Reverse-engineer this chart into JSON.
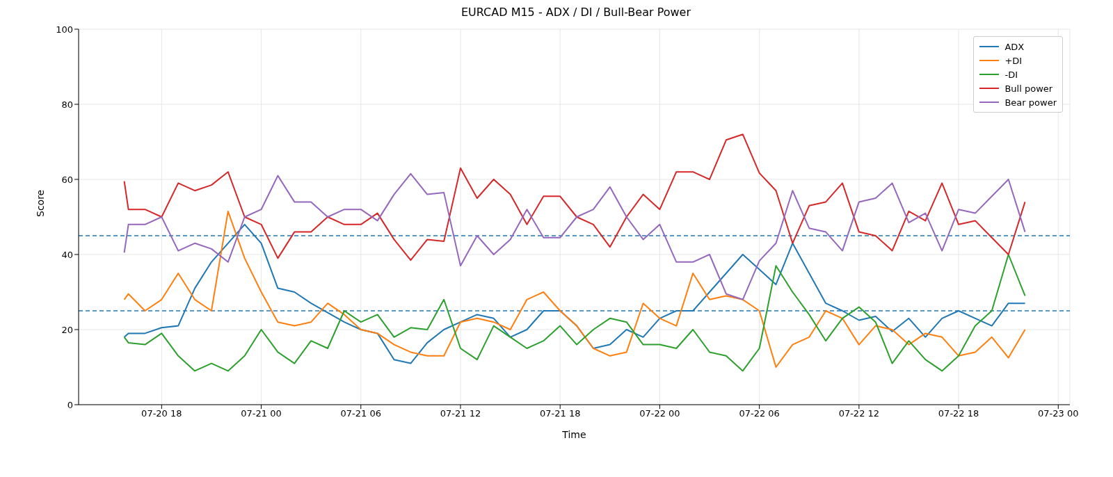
{
  "chart_data": {
    "type": "line",
    "title": "EURCAD M15 - ADX / DI / Bull-Bear Power",
    "xlabel": "Time",
    "ylabel": "Score",
    "x": [
      "--07-20T15:45",
      "--07-20T16:00",
      "--07-20T17:00",
      "--07-20T18:00",
      "--07-20T19:00",
      "--07-20T20:00",
      "--07-20T21:00",
      "--07-20T22:00",
      "--07-20T23:00",
      "--07-21T00:00",
      "--07-21T01:00",
      "--07-21T02:00",
      "--07-21T03:00",
      "--07-21T04:00",
      "--07-21T05:00",
      "--07-21T06:00",
      "--07-21T07:00",
      "--07-21T08:00",
      "--07-21T09:00",
      "--07-21T10:00",
      "--07-21T11:00",
      "--07-21T12:00",
      "--07-21T13:00",
      "--07-21T14:00",
      "--07-21T15:00",
      "--07-21T16:00",
      "--07-21T17:00",
      "--07-21T18:00",
      "--07-21T19:00",
      "--07-21T20:00",
      "--07-21T21:00",
      "--07-21T22:00",
      "--07-21T23:00",
      "--07-22T00:00",
      "--07-22T01:00",
      "--07-22T02:00",
      "--07-22T03:00",
      "--07-22T04:00",
      "--07-22T05:00",
      "--07-22T06:00",
      "--07-22T07:00",
      "--07-22T08:00",
      "--07-22T09:00",
      "--07-22T10:00",
      "--07-22T11:00",
      "--07-22T12:00",
      "--07-22T13:00",
      "--07-22T14:00",
      "--07-22T15:00",
      "--07-22T16:00",
      "--07-22T17:00",
      "--07-22T18:00",
      "--07-22T19:00",
      "--07-22T20:00",
      "--07-22T21:00",
      "--07-22T22:00"
    ],
    "series": [
      {
        "name": "ADX",
        "color": "#1f77b4",
        "values": [
          18,
          19,
          19,
          20.5,
          21,
          31,
          38,
          43,
          48,
          43,
          31,
          30,
          27,
          24.5,
          22,
          20,
          19,
          12,
          11,
          16.5,
          20,
          22,
          24,
          23,
          18,
          20,
          25,
          25,
          21,
          15,
          16,
          20,
          18,
          23,
          25,
          25,
          30,
          35,
          40,
          36,
          32,
          43,
          35,
          27,
          25,
          22.5,
          23.5,
          19.5,
          23,
          18,
          23,
          25,
          23,
          21,
          27,
          27
        ]
      },
      {
        "name": "+DI",
        "color": "#ff7f0e",
        "values": [
          28,
          29.5,
          25,
          28,
          35,
          28,
          25,
          51.5,
          39,
          30,
          22,
          21,
          22,
          27,
          24,
          20,
          19,
          16,
          14,
          13,
          13,
          22,
          23,
          22,
          20,
          28,
          30,
          25,
          21,
          15,
          13,
          14,
          27,
          23,
          21,
          35,
          28,
          29,
          28,
          25,
          10,
          16,
          18,
          25,
          23,
          16,
          21,
          20,
          16,
          19,
          18,
          13,
          14,
          18,
          12.5,
          20
        ]
      },
      {
        "name": "-DI",
        "color": "#2ca02c",
        "values": [
          18,
          16.5,
          16,
          19,
          13,
          9,
          11,
          9,
          13,
          20,
          14,
          11,
          17,
          15,
          25,
          22,
          24,
          18,
          20.5,
          20,
          28,
          15,
          12,
          21,
          18,
          15,
          17,
          21,
          16,
          20,
          23,
          22,
          16,
          16,
          15,
          20,
          14,
          13,
          9,
          15,
          37,
          30,
          24,
          17,
          23,
          26,
          22,
          11,
          17,
          12,
          9,
          13,
          21,
          25,
          40,
          29
        ]
      },
      {
        "name": "Bull power",
        "color": "#d62728",
        "values": [
          59.5,
          52,
          52,
          50,
          59,
          57,
          58.5,
          62,
          50,
          48,
          39,
          46,
          46,
          50,
          48,
          48,
          51,
          44,
          38.5,
          44,
          43.5,
          63,
          55,
          60,
          56,
          48,
          55.5,
          55.5,
          50,
          48,
          42,
          50,
          56,
          52,
          62,
          62,
          60,
          70.5,
          72,
          61.7,
          57,
          43,
          53,
          54,
          59,
          46,
          45,
          41,
          51.5,
          49,
          59,
          48,
          49,
          44.5,
          40,
          54
        ]
      },
      {
        "name": "Bear power",
        "color": "#9467bd",
        "values": [
          40.5,
          48,
          48,
          50,
          41,
          43,
          41.5,
          38,
          50,
          52,
          61,
          54,
          54,
          50,
          52,
          52,
          49,
          56,
          61.5,
          56,
          56.5,
          37,
          45,
          40,
          44,
          52,
          44.5,
          44.5,
          50,
          52,
          58,
          50,
          44,
          48,
          38,
          38,
          40,
          29.5,
          28,
          38.3,
          43,
          57,
          47,
          46,
          41,
          54,
          55,
          59,
          48.5,
          51,
          41,
          52,
          51,
          55.5,
          60,
          46
        ]
      }
    ],
    "xlim": [
      "--07-20T13:00",
      "--07-23T00:42"
    ],
    "xticks": [
      {
        "value": "--07-20T18:00",
        "label": "07-20 18"
      },
      {
        "value": "--07-21T00:00",
        "label": "07-21 00"
      },
      {
        "value": "--07-21T06:00",
        "label": "07-21 06"
      },
      {
        "value": "--07-21T12:00",
        "label": "07-21 12"
      },
      {
        "value": "--07-21T18:00",
        "label": "07-21 18"
      },
      {
        "value": "--07-22T00:00",
        "label": "07-22 00"
      },
      {
        "value": "--07-22T06:00",
        "label": "07-22 06"
      },
      {
        "value": "--07-22T12:00",
        "label": "07-22 12"
      },
      {
        "value": "--07-22T18:00",
        "label": "07-22 18"
      },
      {
        "value": "--07-23T00:00",
        "label": "07-23 00"
      }
    ],
    "ylim": [
      0,
      100
    ],
    "yticks": [
      0,
      20,
      40,
      60,
      80,
      100
    ],
    "ref_lines": [
      {
        "axis": "y",
        "value": 45,
        "color": "#1f77b4",
        "line_style": "dashed"
      },
      {
        "axis": "y",
        "value": 25,
        "color": "#1f77b4",
        "line_style": "dashed"
      }
    ],
    "grid": true,
    "legend": "top right",
    "marker": "none",
    "line_style": "solid"
  }
}
